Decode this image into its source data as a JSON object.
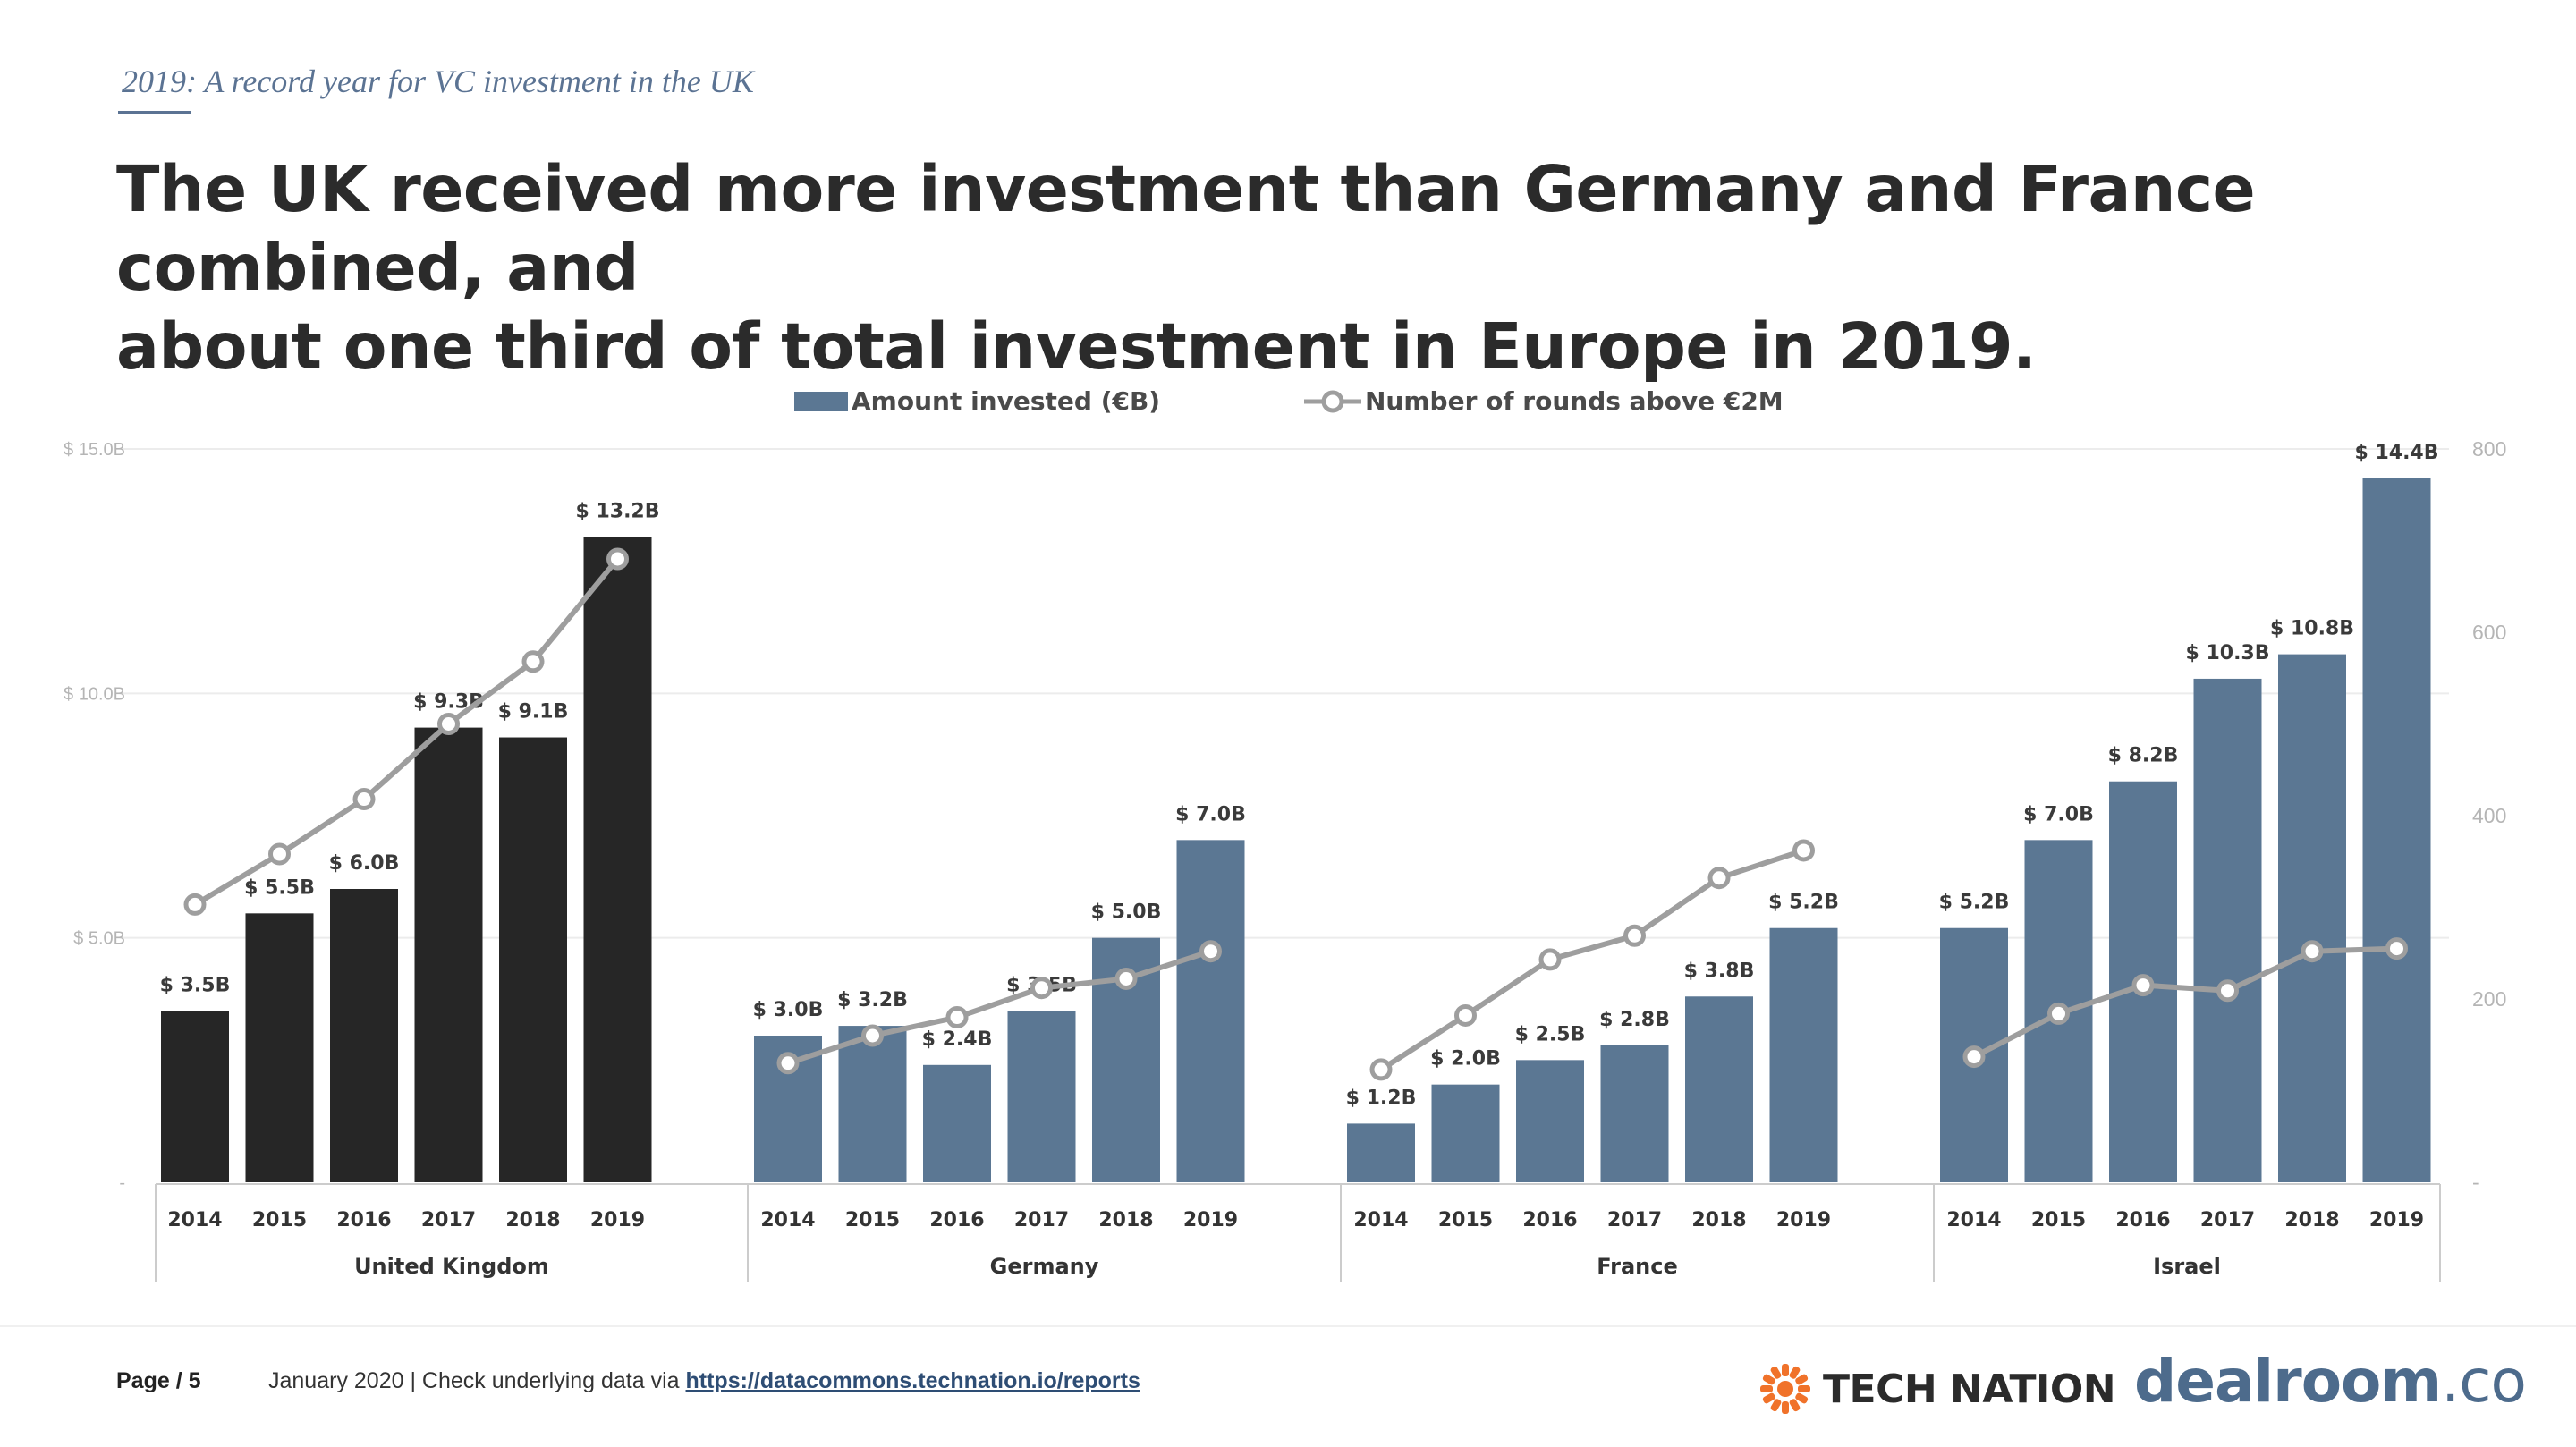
{
  "header": {
    "kicker": "2019: A record year for VC investment in the UK",
    "headline_line1": "The UK received more investment than Germany and France combined, and",
    "headline_line2": "about one third of total investment in Europe in 2019."
  },
  "footer": {
    "page": "Page / 5",
    "note": "January 2020 | Check underlying data via ",
    "link": "https://datacommons.technation.io/reports",
    "logo_tech_nation": "TECH NATION",
    "logo_dealroom": "dealroom",
    "logo_dealroom_suffix": ".co"
  },
  "colors": {
    "uk_bar": "#262626",
    "other_bar": "#5b7793",
    "line": "#9e9e9e",
    "grid": "#ececec",
    "axis_label": "#b5b5b5",
    "tech_nation_orange": "#f0722a"
  },
  "chart_data": {
    "type": "bar",
    "title": "",
    "legend": {
      "bar": "Amount invested (€B)",
      "line": "Number of rounds above €2M",
      "placement": "top-center"
    },
    "y_left": {
      "ticks": [
        "-",
        "$ 5.0B",
        "$ 10.0B",
        "$ 15.0B"
      ],
      "tick_values": [
        0,
        5,
        10,
        15
      ],
      "ylim": [
        0,
        15
      ]
    },
    "y_right": {
      "ticks": [
        "-",
        "200",
        "400",
        "600",
        "800"
      ],
      "tick_values": [
        0,
        200,
        400,
        600,
        800
      ],
      "ylim": [
        0,
        800
      ]
    },
    "grid": true,
    "categories": [
      "2014",
      "2015",
      "2016",
      "2017",
      "2018",
      "2019"
    ],
    "groups": [
      {
        "name": "United Kingdom",
        "values": [
          3.5,
          5.5,
          6.0,
          9.3,
          9.1,
          13.2
        ],
        "labels": [
          "$ 3.5B",
          "$ 5.5B",
          "$ 6.0B",
          "$ 9.3B",
          "$ 9.1B",
          "$ 13.2B"
        ],
        "rounds": [
          303,
          358,
          418,
          500,
          568,
          680
        ]
      },
      {
        "name": "Germany",
        "values": [
          3.0,
          3.2,
          2.4,
          3.5,
          5.0,
          7.0
        ],
        "labels": [
          "$ 3.0B",
          "$ 3.2B",
          "$ 2.4B",
          "$ 3.5B",
          "$ 5.0B",
          "$ 7.0B"
        ],
        "rounds": [
          130,
          160,
          180,
          212,
          222,
          252
        ]
      },
      {
        "name": "France",
        "values": [
          1.2,
          2.0,
          2.5,
          2.8,
          3.8,
          5.2
        ],
        "labels": [
          "$ 1.2B",
          "$ 2.0B",
          "$ 2.5B",
          "$ 2.8B",
          "$ 3.8B",
          "$ 5.2B"
        ],
        "rounds": [
          123,
          182,
          243,
          269,
          332,
          362
        ]
      },
      {
        "name": "Israel",
        "values": [
          5.2,
          7.0,
          8.2,
          10.3,
          10.8,
          14.4
        ],
        "labels": [
          "$ 5.2B",
          "$ 7.0B",
          "$ 8.2B",
          "$ 10.3B",
          "$ 10.8B",
          "$ 14.4B"
        ],
        "rounds": [
          137,
          184,
          215,
          209,
          252,
          255
        ]
      }
    ]
  }
}
